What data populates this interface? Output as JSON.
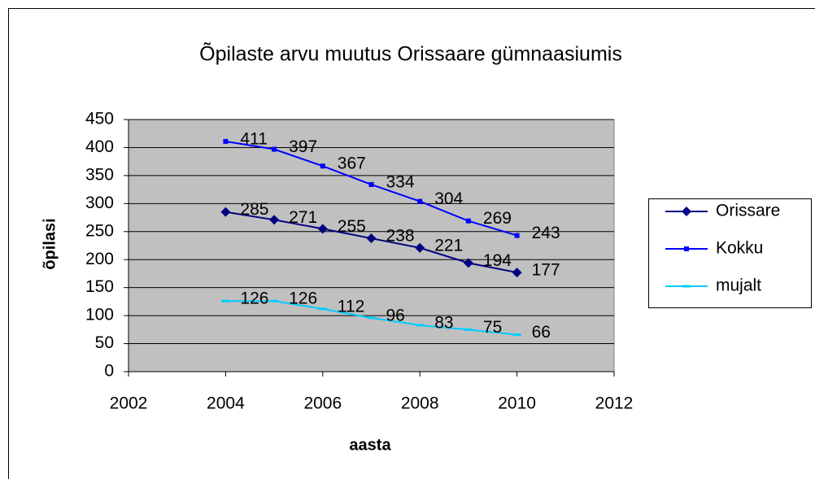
{
  "chart_data": {
    "type": "line",
    "title": "Õpilaste arvu muutus Orissaare gümnaasiumis",
    "x_label": "aasta",
    "y_label": "õpilasi",
    "x": [
      2004,
      2005,
      2006,
      2007,
      2008,
      2009,
      2010
    ],
    "series": [
      {
        "name": "Orissare",
        "color": "#000080",
        "marker": "diamond",
        "values": [
          285,
          271,
          255,
          238,
          221,
          194,
          177
        ]
      },
      {
        "name": "Kokku",
        "color": "#0000ff",
        "marker": "square",
        "values": [
          411,
          397,
          367,
          334,
          304,
          269,
          243
        ]
      },
      {
        "name": "mujalt",
        "color": "#00ccff",
        "marker": "dash",
        "values": [
          126,
          126,
          112,
          96,
          83,
          75,
          66
        ]
      }
    ],
    "xlim": [
      2002,
      2012
    ],
    "xticks": [
      2002,
      2004,
      2006,
      2008,
      2010,
      2012
    ],
    "ylim": [
      0,
      450
    ],
    "yticks": [
      0,
      50,
      100,
      150,
      200,
      250,
      300,
      350,
      400,
      450
    ],
    "grid": true,
    "plot_background": "#c0c0c0",
    "legend": "right"
  }
}
